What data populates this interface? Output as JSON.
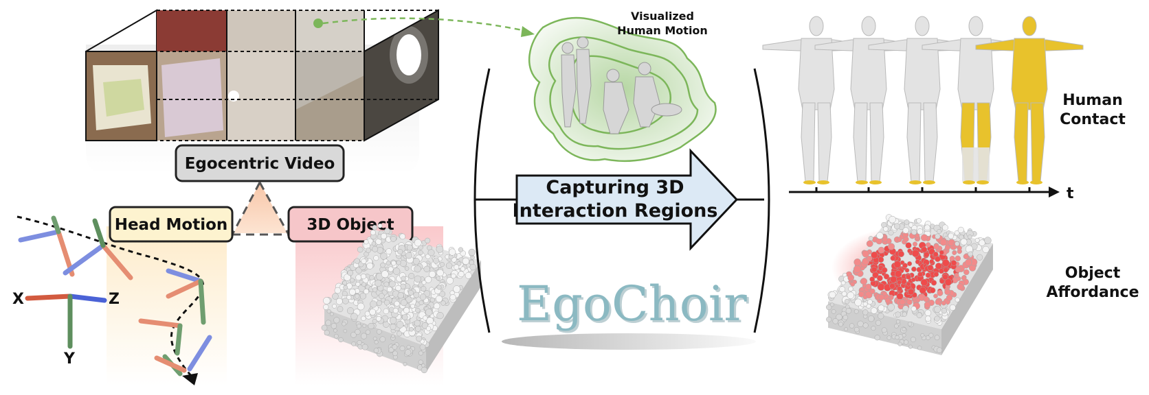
{
  "video_box": {
    "label": "Egocentric Video"
  },
  "head_motion_box": {
    "label": "Head Motion"
  },
  "object_box": {
    "label": "3D Object"
  },
  "axes": {
    "x": "X",
    "y": "Y",
    "z": "Z"
  },
  "motion_caption": {
    "line1": "Visualized",
    "line2": "Human Motion"
  },
  "center_arrow": {
    "line1": "Capturing 3D",
    "line2": "Interaction Regions"
  },
  "logo": {
    "text": "EgoChoir"
  },
  "contact_label": {
    "line1": "Human",
    "line2": "Contact"
  },
  "time_axis": {
    "label": "t"
  },
  "affordance_label": {
    "line1": "Object",
    "line2": "Affordance"
  },
  "colors": {
    "arrow_fill": "#dce9f5",
    "head_motion_fill": "#fdf3cf",
    "object_fill": "#f6c6c9",
    "video_box_fill": "#d9d9d9",
    "contact_yellow": "#e8c22c",
    "motion_green": "#7cb65a",
    "affordance_red": "#ef4b4b",
    "logo_teal": "#8bb9c2"
  }
}
